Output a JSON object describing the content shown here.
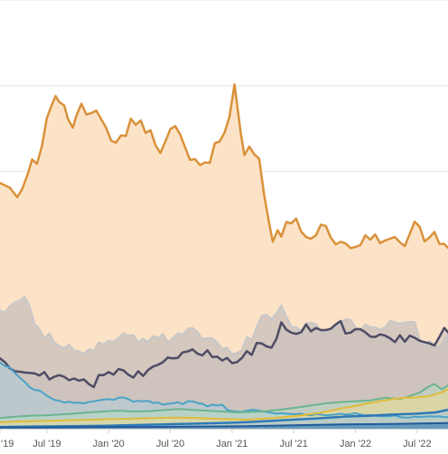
{
  "chart_data": {
    "type": "area",
    "title": "",
    "xlabel": "",
    "ylabel": "",
    "grid": true,
    "x_ticks": [
      "'19",
      "Jul '19",
      "Jan '20",
      "Jul '20",
      "Jan '21",
      "Jul '21",
      "Jan '22",
      "Jul '22"
    ],
    "x_domain": [
      2019.12,
      2022.75
    ],
    "ylim": [
      0,
      100
    ],
    "gridlines": [
      0,
      20,
      40,
      60,
      80,
      100
    ],
    "series": [
      {
        "color": "#d9913a",
        "fill": "#fce3c8",
        "fill_opacity": 1.0,
        "stroke_width": 2.5,
        "x": [
          2019.12,
          2019.2,
          2019.26,
          2019.3,
          2019.35,
          2019.38,
          2019.42,
          2019.46,
          2019.5,
          2019.54,
          2019.57,
          2019.6,
          2019.64,
          2019.67,
          2019.71,
          2019.74,
          2019.78,
          2019.82,
          2019.86,
          2019.9,
          2019.94,
          2019.98,
          2020.02,
          2020.06,
          2020.1,
          2020.14,
          2020.18,
          2020.22,
          2020.26,
          2020.3,
          2020.34,
          2020.38,
          2020.42,
          2020.46,
          2020.5,
          2020.54,
          2020.58,
          2020.62,
          2020.66,
          2020.7,
          2020.74,
          2020.78,
          2020.82,
          2020.86,
          2020.9,
          2020.94,
          2020.98,
          2021.02,
          2021.04,
          2021.07,
          2021.1,
          2021.14,
          2021.18,
          2021.22,
          2021.26,
          2021.3,
          2021.33,
          2021.37,
          2021.4,
          2021.44,
          2021.48,
          2021.52,
          2021.56,
          2021.6,
          2021.64,
          2021.68,
          2021.72,
          2021.76,
          2021.8,
          2021.84,
          2021.88,
          2021.92,
          2021.96,
          2022.0,
          2022.04,
          2022.08,
          2022.12,
          2022.16,
          2022.2,
          2022.24,
          2022.28,
          2022.32,
          2022.36,
          2022.4,
          2022.44,
          2022.48,
          2022.52,
          2022.56,
          2022.6,
          2022.64,
          2022.68,
          2022.72,
          2022.75
        ],
        "y": [
          57.3,
          56.2,
          54.0,
          55.9,
          59.8,
          62.8,
          61.8,
          66.0,
          72.5,
          75.5,
          77.6,
          76.2,
          75.4,
          72.3,
          70.2,
          73.1,
          75.8,
          73.3,
          73.6,
          74.2,
          72.2,
          70.2,
          67.2,
          66.7,
          68.4,
          68.3,
          72.3,
          70.9,
          71.9,
          69.0,
          69.6,
          66.1,
          64.3,
          67.0,
          69.9,
          70.6,
          68.6,
          65.6,
          62.7,
          62.9,
          61.5,
          62.1,
          62.0,
          66.6,
          67.0,
          69.1,
          72.8,
          80.3,
          76.0,
          69.2,
          63.8,
          65.8,
          64.0,
          63.0,
          54.6,
          48.0,
          43.6,
          46.3,
          44.8,
          48.2,
          47.9,
          49.0,
          46.0,
          44.7,
          44.3,
          45.1,
          47.6,
          47.3,
          44.6,
          43.0,
          43.6,
          43.2,
          42.1,
          42.4,
          42.8,
          45.1,
          44.1,
          45.3,
          43.3,
          43.9,
          44.3,
          44.7,
          43.5,
          42.6,
          45.4,
          48.3,
          47.1,
          43.7,
          44.6,
          45.9,
          43.1,
          43.1,
          42.2
        ]
      },
      {
        "color": "#c8c8c8",
        "fill": "#c7bfbc",
        "fill_opacity": 0.75,
        "stroke_width": 2,
        "x": [
          2019.12,
          2019.16,
          2019.2,
          2019.24,
          2019.28,
          2019.32,
          2019.36,
          2019.4,
          2019.44,
          2019.48,
          2019.52,
          2019.56,
          2019.6,
          2019.64,
          2019.68,
          2019.72,
          2019.76,
          2019.8,
          2019.84,
          2019.88,
          2019.92,
          2019.96,
          2020.0,
          2020.04,
          2020.08,
          2020.12,
          2020.16,
          2020.2,
          2020.24,
          2020.28,
          2020.32,
          2020.36,
          2020.4,
          2020.44,
          2020.48,
          2020.52,
          2020.56,
          2020.6,
          2020.64,
          2020.68,
          2020.72,
          2020.76,
          2020.8,
          2020.84,
          2020.88,
          2020.92,
          2020.96,
          2021.0,
          2021.04,
          2021.08,
          2021.12,
          2021.16,
          2021.2,
          2021.24,
          2021.28,
          2021.32,
          2021.36,
          2021.4,
          2021.44,
          2021.48,
          2021.52,
          2021.56,
          2021.6,
          2021.64,
          2021.68,
          2021.72,
          2021.76,
          2021.8,
          2021.84,
          2021.88,
          2021.92,
          2021.96,
          2022.0,
          2022.04,
          2022.08,
          2022.12,
          2022.16,
          2022.2,
          2022.24,
          2022.28,
          2022.32,
          2022.36,
          2022.4,
          2022.44,
          2022.48,
          2022.52,
          2022.56,
          2022.6,
          2022.64,
          2022.68,
          2022.72,
          2022.75
        ],
        "y": [
          27.6,
          27.1,
          28.6,
          29.5,
          29.9,
          30.8,
          28.6,
          24.4,
          23.3,
          21.1,
          22.3,
          20.1,
          19.3,
          18.8,
          19.6,
          18.3,
          18.1,
          17.5,
          18.6,
          18.2,
          20.1,
          19.7,
          20.5,
          20.3,
          21.1,
          22.3,
          21.7,
          21.9,
          20.2,
          21.0,
          20.3,
          21.6,
          21.1,
          22.1,
          20.2,
          21.1,
          22.3,
          21.9,
          23.3,
          23.5,
          22.6,
          20.9,
          21.1,
          21.1,
          20.1,
          18.6,
          18.9,
          17.4,
          17.7,
          18.3,
          21.4,
          20.7,
          23.8,
          26.3,
          26.6,
          25.5,
          27.0,
          28.8,
          26.2,
          23.8,
          23.7,
          22.8,
          24.6,
          24.7,
          24.4,
          22.9,
          22.5,
          23.3,
          23.8,
          24.7,
          25.5,
          25.4,
          23.7,
          23.0,
          24.3,
          23.7,
          23.7,
          23.1,
          23.6,
          25.2,
          24.8,
          24.5,
          24.8,
          24.9,
          24.9,
          21.0,
          19.1,
          20.5,
          19.6,
          19.0,
          20.6,
          22.1
        ]
      },
      {
        "color": "#4e4c66",
        "fill": "#c9c0bb",
        "fill_opacity": 0.55,
        "stroke_width": 2.5,
        "x": [
          2019.12,
          2019.16,
          2019.2,
          2019.24,
          2019.28,
          2019.32,
          2019.36,
          2019.4,
          2019.44,
          2019.48,
          2019.52,
          2019.56,
          2019.6,
          2019.64,
          2019.68,
          2019.72,
          2019.76,
          2019.8,
          2019.84,
          2019.88,
          2019.92,
          2019.96,
          2020.0,
          2020.04,
          2020.08,
          2020.12,
          2020.16,
          2020.2,
          2020.24,
          2020.28,
          2020.32,
          2020.36,
          2020.4,
          2020.44,
          2020.48,
          2020.52,
          2020.56,
          2020.6,
          2020.64,
          2020.68,
          2020.72,
          2020.76,
          2020.8,
          2020.84,
          2020.88,
          2020.92,
          2020.96,
          2021.0,
          2021.04,
          2021.08,
          2021.12,
          2021.16,
          2021.2,
          2021.24,
          2021.28,
          2021.32,
          2021.36,
          2021.4,
          2021.44,
          2021.48,
          2021.52,
          2021.56,
          2021.6,
          2021.64,
          2021.68,
          2021.72,
          2021.76,
          2021.8,
          2021.84,
          2021.88,
          2021.92,
          2021.96,
          2022.0,
          2022.04,
          2022.08,
          2022.12,
          2022.16,
          2022.2,
          2022.24,
          2022.28,
          2022.32,
          2022.36,
          2022.4,
          2022.44,
          2022.48,
          2022.52,
          2022.56,
          2022.6,
          2022.64,
          2022.68,
          2022.72,
          2022.75
        ],
        "y": [
          16.4,
          15.5,
          14.1,
          13.4,
          13.3,
          13.1,
          13.0,
          12.9,
          12.4,
          13.2,
          11.5,
          12.1,
          12.5,
          12.1,
          11.3,
          11.7,
          11.2,
          11.5,
          10.4,
          9.7,
          12.5,
          12.5,
          13.2,
          12.6,
          13.9,
          13.6,
          12.6,
          11.9,
          13.4,
          12.3,
          13.7,
          14.5,
          14.9,
          15.5,
          16.6,
          16.4,
          16.5,
          17.8,
          18.0,
          18.5,
          17.5,
          17.1,
          18.3,
          16.7,
          16.8,
          15.9,
          16.5,
          15.3,
          15.5,
          16.5,
          18.1,
          17.2,
          20.0,
          19.9,
          19.2,
          18.9,
          21.0,
          24.8,
          23.1,
          22.4,
          22.1,
          22.5,
          24.3,
          22.7,
          23.5,
          23.0,
          23.0,
          23.3,
          24.3,
          25.1,
          22.2,
          22.4,
          23.2,
          23.2,
          22.5,
          21.5,
          21.4,
          22.0,
          21.7,
          21.1,
          20.2,
          21.8,
          20.3,
          21.7,
          21.2,
          20.5,
          20.2,
          19.9,
          19.4,
          21.4,
          23.5,
          22.5
        ]
      },
      {
        "color": "#4aa3c8",
        "fill": "#a8cfe0",
        "fill_opacity": 0.45,
        "stroke_width": 2,
        "x": [
          2019.12,
          2019.16,
          2019.2,
          2019.24,
          2019.28,
          2019.32,
          2019.36,
          2019.4,
          2019.44,
          2019.48,
          2019.52,
          2019.56,
          2019.6,
          2019.64,
          2019.68,
          2019.72,
          2019.76,
          2019.8,
          2019.84,
          2019.88,
          2019.92,
          2019.96,
          2020.0,
          2020.04,
          2020.08,
          2020.12,
          2020.16,
          2020.2,
          2020.24,
          2020.28,
          2020.32,
          2020.36,
          2020.4,
          2020.44,
          2020.48,
          2020.52,
          2020.56,
          2020.6,
          2020.64,
          2020.68,
          2020.72,
          2020.76,
          2020.8,
          2020.84,
          2020.88,
          2020.92,
          2020.96,
          2021.0,
          2021.04,
          2021.08,
          2021.12,
          2021.16,
          2021.2,
          2021.24,
          2021.28,
          2021.32,
          2021.36,
          2021.4,
          2021.44,
          2021.48,
          2021.52,
          2021.56,
          2021.6,
          2021.64,
          2021.68,
          2021.72,
          2021.76,
          2021.8,
          2021.84,
          2021.88,
          2021.92,
          2021.96,
          2022.0,
          2022.04,
          2022.08,
          2022.12,
          2022.16,
          2022.2,
          2022.24,
          2022.28,
          2022.32,
          2022.36,
          2022.4,
          2022.44,
          2022.48,
          2022.52,
          2022.56,
          2022.6,
          2022.64,
          2022.68,
          2022.72,
          2022.75
        ],
        "y": [
          15.4,
          14.6,
          14.3,
          13.0,
          11.9,
          10.9,
          9.7,
          9.0,
          8.9,
          8.1,
          7.3,
          6.7,
          6.5,
          6.1,
          6.3,
          6.0,
          6.1,
          5.9,
          6.2,
          6.4,
          6.6,
          6.8,
          6.9,
          6.7,
          7.2,
          7.3,
          6.9,
          6.3,
          6.5,
          6.4,
          6.5,
          6.0,
          6.1,
          5.6,
          5.8,
          5.9,
          6.2,
          5.7,
          6.4,
          6.4,
          6.0,
          5.8,
          5.2,
          5.6,
          5.4,
          5.6,
          4.4,
          4.1,
          4.0,
          3.9,
          4.2,
          4.4,
          4.3,
          4.1,
          3.9,
          3.7,
          3.5,
          3.6,
          3.5,
          3.4,
          3.4,
          3.5,
          3.2,
          3.1,
          3.4,
          3.3,
          3.1,
          3.2,
          3.3,
          3.5,
          3.3,
          3.4,
          3.6,
          3.3,
          3.1,
          3.2,
          3.0,
          2.9,
          2.9,
          2.9,
          3.1,
          2.7,
          2.6,
          2.6,
          2.8,
          2.7,
          2.8,
          2.9,
          2.8,
          2.9,
          2.7,
          2.7
        ]
      },
      {
        "color": "#6bb58e",
        "fill": "#b5dcc4",
        "fill_opacity": 0.5,
        "stroke_width": 2,
        "x": [
          2019.12,
          2019.24,
          2019.36,
          2019.48,
          2019.6,
          2019.72,
          2019.84,
          2019.96,
          2020.08,
          2020.2,
          2020.32,
          2020.44,
          2020.56,
          2020.68,
          2020.8,
          2020.92,
          2021.04,
          2021.16,
          2021.28,
          2021.4,
          2021.52,
          2021.64,
          2021.76,
          2021.88,
          2022.0,
          2022.12,
          2022.24,
          2022.36,
          2022.44,
          2022.52,
          2022.58,
          2022.64,
          2022.7,
          2022.75
        ],
        "y": [
          2.5,
          2.8,
          3.0,
          3.1,
          3.3,
          3.5,
          3.8,
          4.0,
          4.2,
          4.0,
          4.1,
          4.3,
          4.6,
          4.4,
          4.2,
          4.0,
          3.8,
          3.9,
          4.1,
          4.5,
          4.9,
          5.4,
          5.9,
          6.2,
          6.4,
          6.6,
          7.2,
          6.9,
          7.6,
          8.4,
          9.6,
          10.4,
          9.2,
          10.1
        ]
      },
      {
        "color": "#e0bb3c",
        "fill": "#f2dc8e",
        "fill_opacity": 0.5,
        "stroke_width": 2,
        "x": [
          2019.12,
          2019.3,
          2019.5,
          2019.7,
          2019.9,
          2020.1,
          2020.3,
          2020.5,
          2020.7,
          2020.9,
          2021.1,
          2021.3,
          2021.5,
          2021.7,
          2021.9,
          2022.0,
          2022.1,
          2022.2,
          2022.3,
          2022.4,
          2022.5,
          2022.6,
          2022.7,
          2022.75
        ],
        "y": [
          1.5,
          1.7,
          1.8,
          2.0,
          2.1,
          2.3,
          2.4,
          2.6,
          2.5,
          2.3,
          2.1,
          2.4,
          2.9,
          3.6,
          4.8,
          5.3,
          5.9,
          6.4,
          6.9,
          7.2,
          7.3,
          7.6,
          8.5,
          9.2
        ]
      },
      {
        "color": "#2e79b8",
        "fill": "#9ec3e2",
        "fill_opacity": 0.5,
        "stroke_width": 2.5,
        "x": [
          2019.12,
          2019.4,
          2019.7,
          2020.0,
          2020.3,
          2020.6,
          2020.9,
          2021.1,
          2021.3,
          2021.5,
          2021.7,
          2021.9,
          2022.1,
          2022.3,
          2022.5,
          2022.65,
          2022.75
        ],
        "y": [
          0.4,
          0.5,
          0.6,
          0.7,
          0.9,
          1.1,
          1.3,
          1.5,
          1.8,
          2.1,
          2.4,
          2.8,
          3.0,
          3.3,
          3.5,
          3.8,
          4.4
        ]
      },
      {
        "color": "#245a99",
        "fill": "#2e79b8",
        "fill_opacity": 0.6,
        "stroke_width": 2,
        "x": [
          2019.12,
          2019.5,
          2019.9,
          2020.3,
          2020.7,
          2021.1,
          2021.5,
          2021.9,
          2022.3,
          2022.75
        ],
        "y": [
          0.3,
          0.3,
          0.4,
          0.4,
          0.5,
          0.6,
          0.8,
          1.0,
          1.1,
          1.3
        ]
      }
    ]
  }
}
